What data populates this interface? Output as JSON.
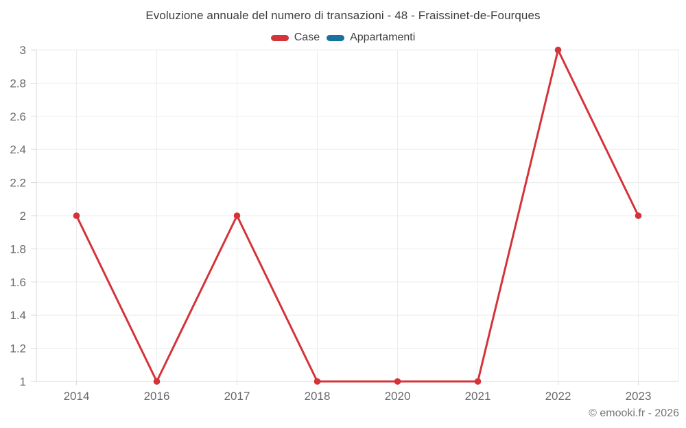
{
  "page": {
    "footer": "© emooki.fr - 2026"
  },
  "chart_data": {
    "type": "line",
    "title": "Evoluzione annuale del numero di transazioni - 48 - Fraissinet-de-Fourques",
    "categories": [
      "2014",
      "2016",
      "2017",
      "2018",
      "2020",
      "2021",
      "2022",
      "2023"
    ],
    "series": [
      {
        "name": "Case",
        "color": "#d43339",
        "values": [
          2,
          1,
          2,
          1,
          1,
          1,
          3,
          2
        ]
      },
      {
        "name": "Appartamenti",
        "color": "#19719e",
        "values": []
      }
    ],
    "xlabel": "",
    "ylabel": "",
    "ylim": [
      1,
      3
    ],
    "yticks": [
      1,
      1.2,
      1.4,
      1.6,
      1.8,
      2,
      2.2,
      2.4,
      2.6,
      2.8,
      3
    ],
    "grid": true,
    "legend_position": "top",
    "marker_radius": 4.8,
    "line_width": 3
  },
  "style": {
    "grid_color": "#ececec",
    "axis_color": "#d8d8d8",
    "tick_label_color": "#6a6a6a",
    "title_color": "#3e3e3e",
    "footer_color": "#757575",
    "background": "#ffffff"
  }
}
